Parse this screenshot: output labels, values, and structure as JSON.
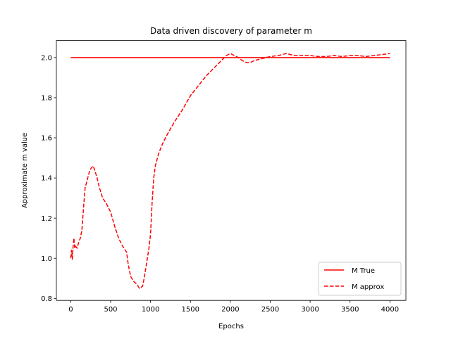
{
  "chart_data": {
    "type": "line",
    "title": "Data driven discovery of parameter m",
    "xlabel": "Epochs",
    "ylabel": "Approximate m value",
    "xlim": [
      -180,
      4200
    ],
    "ylim": [
      0.79,
      2.085
    ],
    "x_ticks": [
      0,
      500,
      1000,
      1500,
      2000,
      2500,
      3000,
      3500,
      4000
    ],
    "y_ticks": [
      0.8,
      1.0,
      1.2,
      1.4,
      1.6,
      1.8,
      2.0
    ],
    "x_tick_labels": [
      "0",
      "500",
      "1000",
      "1500",
      "2000",
      "2500",
      "3000",
      "3500",
      "4000"
    ],
    "y_tick_labels": [
      "0.8",
      "1.0",
      "1.2",
      "1.4",
      "1.6",
      "1.8",
      "2.0"
    ],
    "grid": false,
    "legend_position": "lower-right",
    "series": [
      {
        "name": "M True",
        "color": "#ff0000",
        "style": "solid",
        "x": [
          0,
          4000
        ],
        "y": [
          2.0,
          2.0
        ]
      },
      {
        "name": "M approx",
        "color": "#ff0000",
        "style": "dashed",
        "x": [
          0,
          10,
          20,
          30,
          40,
          50,
          60,
          80,
          100,
          120,
          140,
          160,
          180,
          200,
          220,
          240,
          260,
          280,
          300,
          330,
          360,
          400,
          450,
          500,
          550,
          600,
          650,
          700,
          720,
          750,
          780,
          800,
          830,
          860,
          880,
          900,
          920,
          940,
          960,
          980,
          1000,
          1020,
          1040,
          1060,
          1080,
          1100,
          1150,
          1200,
          1300,
          1400,
          1500,
          1600,
          1700,
          1800,
          1900,
          1950,
          2000,
          2050,
          2100,
          2150,
          2200,
          2250,
          2300,
          2400,
          2500,
          2600,
          2700,
          2800,
          2900,
          3000,
          3100,
          3200,
          3300,
          3400,
          3500,
          3600,
          3700,
          3800,
          3900,
          4000
        ],
        "y": [
          1.0,
          1.04,
          0.995,
          1.06,
          1.1,
          1.05,
          1.06,
          1.05,
          1.08,
          1.1,
          1.14,
          1.25,
          1.35,
          1.38,
          1.41,
          1.44,
          1.45,
          1.46,
          1.44,
          1.4,
          1.35,
          1.3,
          1.27,
          1.23,
          1.16,
          1.1,
          1.06,
          1.03,
          0.97,
          0.91,
          0.89,
          0.88,
          0.87,
          0.85,
          0.855,
          0.86,
          0.9,
          0.95,
          1.0,
          1.05,
          1.12,
          1.28,
          1.4,
          1.46,
          1.49,
          1.52,
          1.57,
          1.61,
          1.68,
          1.74,
          1.81,
          1.86,
          1.91,
          1.95,
          1.99,
          2.01,
          2.02,
          2.01,
          2.0,
          1.985,
          1.975,
          1.975,
          1.985,
          1.995,
          2.005,
          2.01,
          2.02,
          2.01,
          2.01,
          2.01,
          2.005,
          2.005,
          2.01,
          2.005,
          2.01,
          2.01,
          2.005,
          2.01,
          2.015,
          2.02
        ]
      }
    ]
  }
}
